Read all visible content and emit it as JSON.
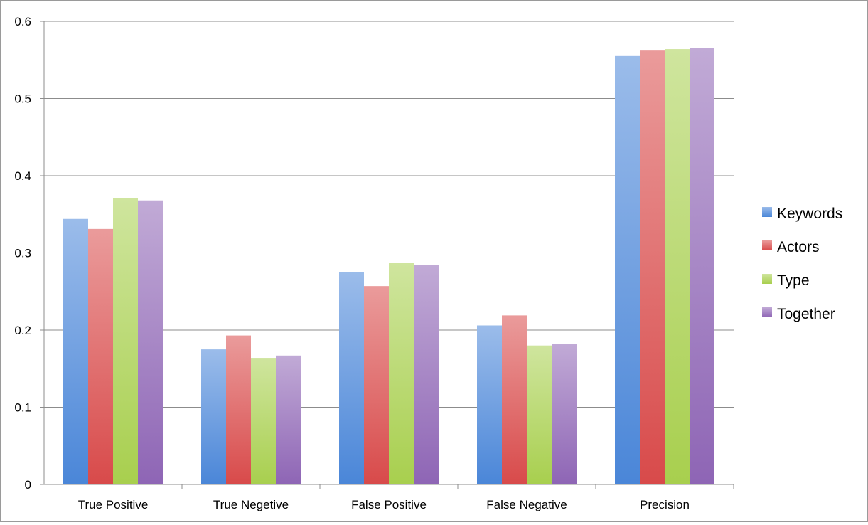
{
  "chart_data": {
    "type": "bar",
    "title": "",
    "xlabel": "",
    "ylabel": "",
    "categories": [
      "True Positive",
      "True Negetive",
      "False Positive",
      "False Negative",
      "Precision"
    ],
    "series": [
      {
        "name": "Keywords",
        "values": [
          0.344,
          0.175,
          0.275,
          0.206,
          0.555
        ],
        "color": "#4a86d8"
      },
      {
        "name": "Actors",
        "values": [
          0.331,
          0.193,
          0.257,
          0.219,
          0.563
        ],
        "color": "#d84a4a"
      },
      {
        "name": "Type",
        "values": [
          0.371,
          0.164,
          0.287,
          0.18,
          0.564
        ],
        "color": "#a8cf4e"
      },
      {
        "name": "Together",
        "values": [
          0.368,
          0.167,
          0.284,
          0.182,
          0.565
        ],
        "color": "#8e65b5"
      }
    ],
    "ylim": [
      0,
      0.6
    ],
    "yticks": [
      "0",
      "0.1",
      "0.2",
      "0.3",
      "0.4",
      "0.5",
      "0.6"
    ],
    "grid": true,
    "legend_position": "right"
  }
}
